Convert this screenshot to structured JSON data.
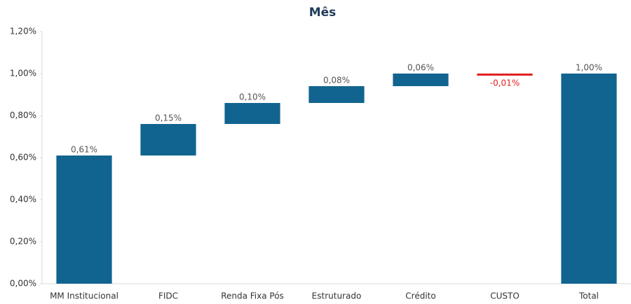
{
  "chart_data": {
    "type": "waterfall",
    "title": "Mês",
    "categories": [
      "MM Institucional",
      "FIDC",
      "Renda Fixa Pós",
      "Estruturado",
      "Crédito",
      "CUSTO",
      "Total"
    ],
    "values": [
      0.61,
      0.15,
      0.1,
      0.08,
      0.06,
      -0.01,
      1.0
    ],
    "value_labels": [
      "0,61%",
      "0,15%",
      "0,10%",
      "0,08%",
      "0,06%",
      "-0,01%",
      "1,00%"
    ],
    "totals": [
      false,
      false,
      false,
      false,
      false,
      false,
      true
    ],
    "color": "#11648f",
    "negative_color": "#e02020",
    "ylim": [
      0,
      1.2
    ],
    "yticks": [
      {
        "value": 0,
        "label": "0,00%"
      },
      {
        "value": 0.2,
        "label": "0,20%"
      },
      {
        "value": 0.4,
        "label": "0,40%"
      },
      {
        "value": 0.6,
        "label": "0,60%"
      },
      {
        "value": 0.8,
        "label": "0,80%"
      },
      {
        "value": 1.0,
        "label": "1,00%"
      },
      {
        "value": 1.2,
        "label": "1,20%"
      }
    ],
    "grid": false
  }
}
